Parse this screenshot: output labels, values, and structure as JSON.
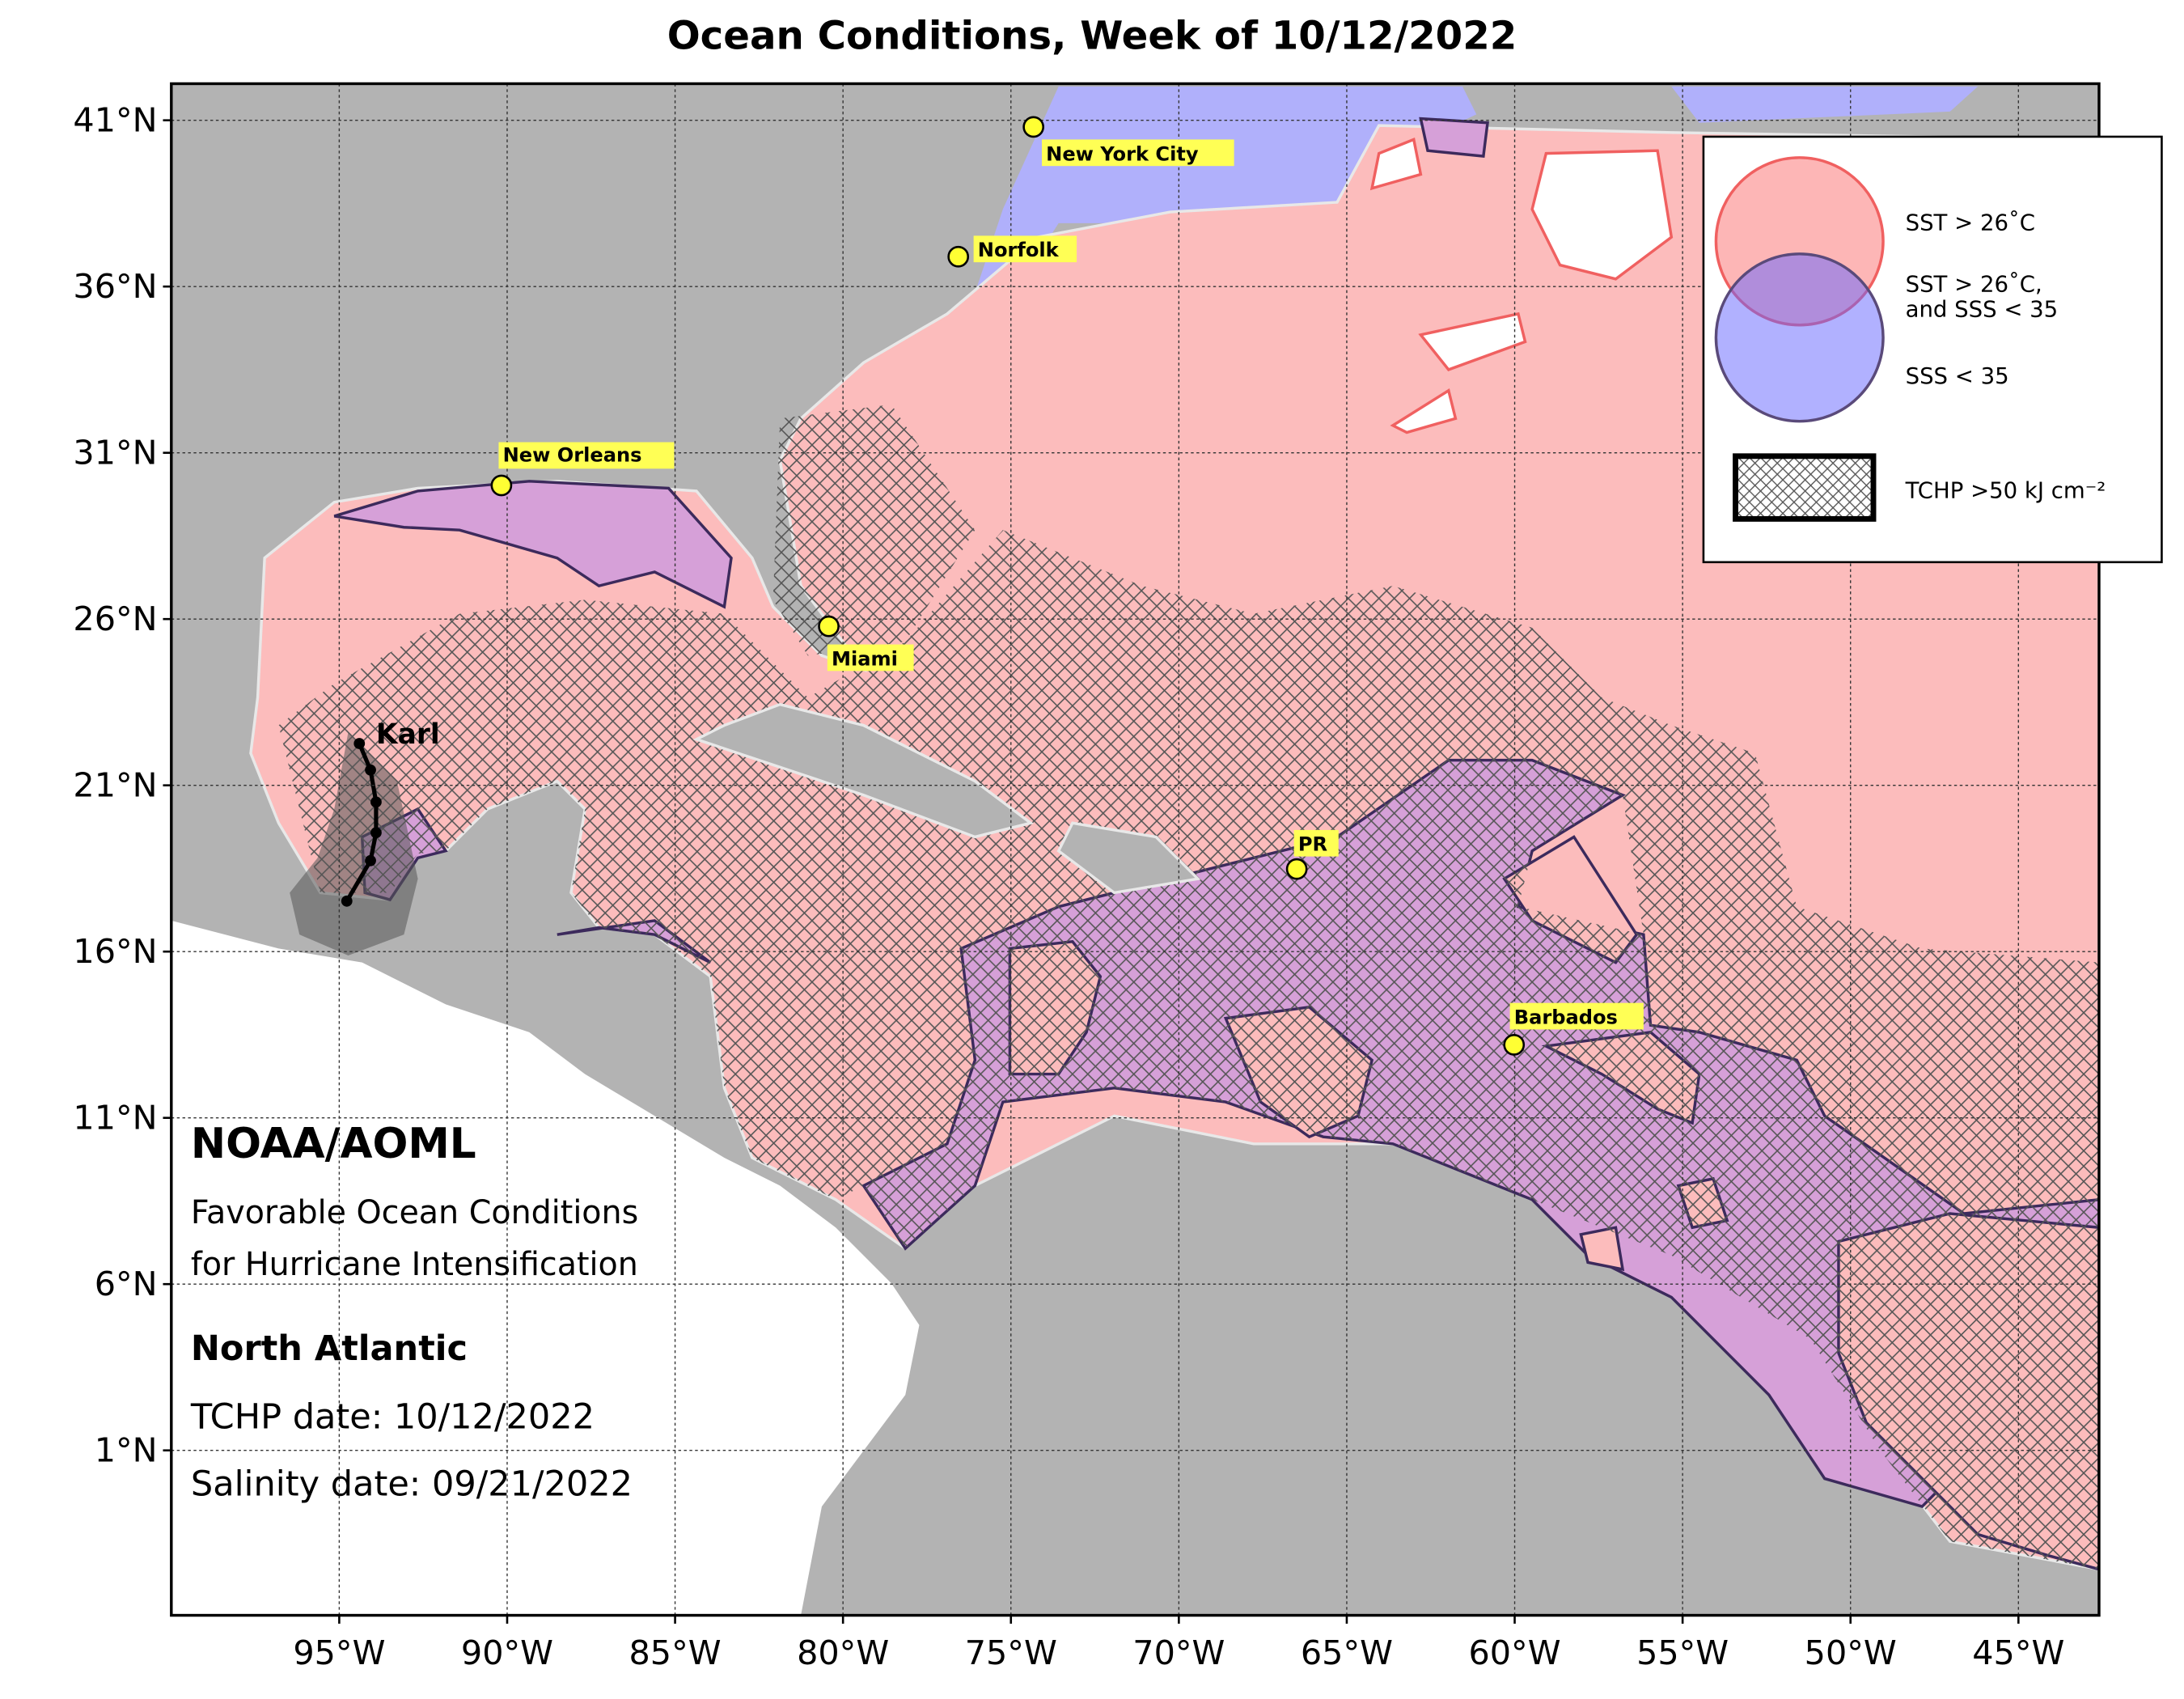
{
  "map": {
    "title": "Ocean Conditions, Week of 10/12/2022",
    "lon_range": [
      -100,
      -42.6
    ],
    "lat_range": [
      -3.96,
      42.1
    ],
    "lon_ticks": [
      {
        "value": -95,
        "label": "95°W"
      },
      {
        "value": -90,
        "label": "90°W"
      },
      {
        "value": -85,
        "label": "85°W"
      },
      {
        "value": -80,
        "label": "80°W"
      },
      {
        "value": -75,
        "label": "75°W"
      },
      {
        "value": -70,
        "label": "70°W"
      },
      {
        "value": -65,
        "label": "65°W"
      },
      {
        "value": -60,
        "label": "60°W"
      },
      {
        "value": -55,
        "label": "55°W"
      },
      {
        "value": -50,
        "label": "50°W"
      },
      {
        "value": -45,
        "label": "45°W"
      }
    ],
    "lat_ticks": [
      {
        "value": 41,
        "label": "41°N"
      },
      {
        "value": 36,
        "label": "36°N"
      },
      {
        "value": 31,
        "label": "31°N"
      },
      {
        "value": 26,
        "label": "26°N"
      },
      {
        "value": 21,
        "label": "21°N"
      },
      {
        "value": 16,
        "label": "16°N"
      },
      {
        "value": 11,
        "label": "11°N"
      },
      {
        "value": 6,
        "label": "6°N"
      },
      {
        "value": 1,
        "label": "1°N"
      }
    ],
    "cities": [
      "New York City",
      "Norfolk",
      "New Orleans",
      "Miami",
      "PR",
      "Barbados"
    ],
    "storm": "Karl",
    "legend": {
      "sst": "SST > 26˚C",
      "both": [
        "SST > 26˚C,",
        "and SSS < 35"
      ],
      "sss": "SSS < 35",
      "tchp": "TCHP >50 kJ cm⁻²"
    },
    "info": {
      "org": "NOAA/AOML",
      "subtitle": [
        "Favorable Ocean Conditions",
        "for Hurricane Intensification"
      ],
      "region": "North Atlantic",
      "tchp_date": "TCHP date: 10/12/2022",
      "salinity_date": "Salinity date: 09/21/2022"
    }
  }
}
